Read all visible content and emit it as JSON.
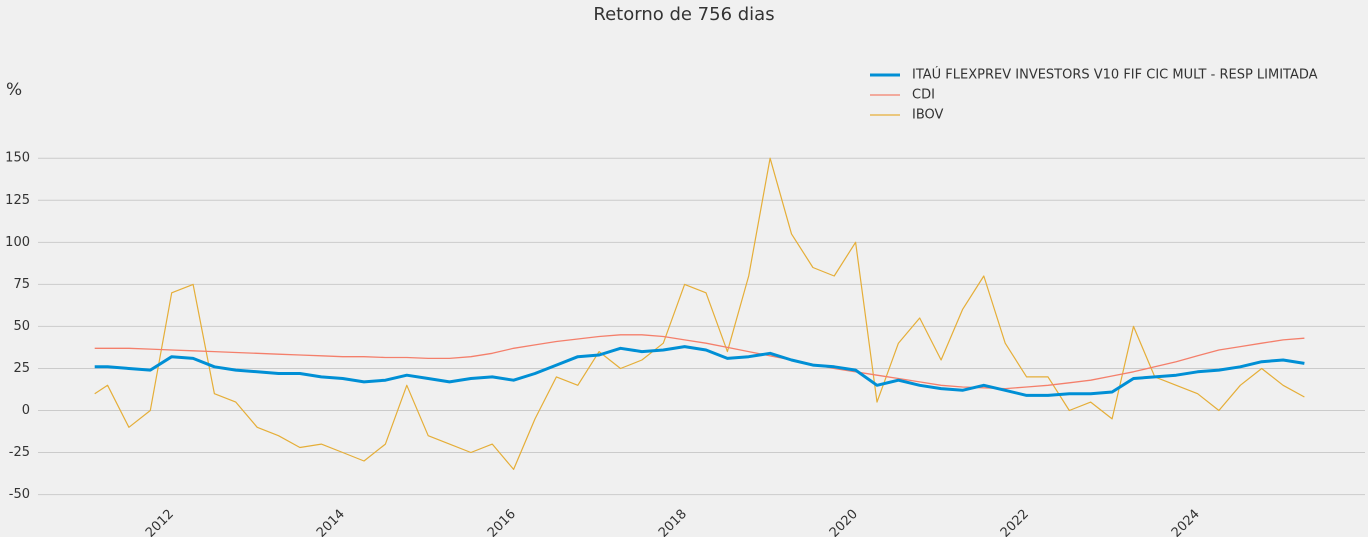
{
  "chart_data": {
    "type": "line",
    "title": "Retorno de 756 dias",
    "y_label": "%",
    "x": [
      2011.1,
      2011.25,
      2011.5,
      2011.75,
      2012,
      2012.25,
      2012.5,
      2012.75,
      2013,
      2013.25,
      2013.5,
      2013.75,
      2014,
      2014.25,
      2014.5,
      2014.75,
      2015,
      2015.25,
      2015.5,
      2015.75,
      2016,
      2016.25,
      2016.5,
      2016.75,
      2017,
      2017.25,
      2017.5,
      2017.75,
      2018,
      2018.25,
      2018.5,
      2018.75,
      2019,
      2019.25,
      2019.5,
      2019.75,
      2020,
      2020.25,
      2020.5,
      2020.75,
      2021,
      2021.25,
      2021.5,
      2021.75,
      2022,
      2022.25,
      2022.5,
      2022.75,
      2023,
      2023.25,
      2023.5,
      2023.75,
      2024,
      2024.25,
      2024.5,
      2024.75,
      2025,
      2025.25
    ],
    "series": [
      {
        "name": "ITAÚ FLEXPREV INVESTORS V10 FIF CIC MULT - RESP LIMITADA",
        "color": "#008fd5",
        "width": 3,
        "values": [
          26,
          26,
          25,
          24,
          32,
          31,
          26,
          24,
          23,
          22,
          22,
          20,
          19,
          17,
          18,
          21,
          19,
          17,
          19,
          20,
          18,
          22,
          27,
          32,
          33,
          37,
          35,
          36,
          38,
          36,
          31,
          32,
          34,
          30,
          27,
          26,
          24,
          15,
          18,
          15,
          13,
          12,
          15,
          12,
          9,
          9,
          10,
          10,
          11,
          19,
          20,
          21,
          23,
          24,
          26,
          29,
          30,
          28
        ]
      },
      {
        "name": "CDI",
        "color": "#f47f6b",
        "width": 1.3,
        "values": [
          37,
          37,
          37,
          36.5,
          36,
          35.5,
          35,
          34.5,
          34,
          33.5,
          33,
          32.5,
          32,
          32,
          31.5,
          31.5,
          31,
          31,
          32,
          34,
          37,
          39,
          41,
          42.5,
          44,
          45,
          45,
          44,
          42,
          40,
          37.5,
          35,
          32.5,
          30,
          27.5,
          25,
          23,
          21,
          19,
          17,
          15,
          14,
          13.5,
          13,
          14,
          15,
          16.5,
          18,
          20.5,
          23,
          26,
          29,
          32.5,
          36,
          38,
          40,
          42,
          43
        ]
      },
      {
        "name": "IBOV",
        "color": "#e5ae38",
        "width": 1.2,
        "values": [
          10,
          15,
          -10,
          0,
          70,
          75,
          10,
          5,
          -10,
          -15,
          -22,
          -20,
          -25,
          -30,
          -20,
          15,
          -15,
          -20,
          -25,
          -20,
          -35,
          -5,
          20,
          15,
          35,
          25,
          30,
          40,
          75,
          70,
          35,
          80,
          150,
          105,
          85,
          80,
          100,
          5,
          40,
          55,
          30,
          60,
          80,
          40,
          20,
          20,
          0,
          5,
          -5,
          50,
          20,
          15,
          10,
          0,
          15,
          25,
          15,
          8
        ]
      }
    ],
    "xlim": [
      2010.6,
      2025.9
    ],
    "xticks": [
      2012,
      2014,
      2016,
      2018,
      2020,
      2022,
      2024
    ],
    "ylim": [
      -55,
      165
    ],
    "yticks": [
      -50,
      -25,
      0,
      25,
      50,
      75,
      100,
      125,
      150
    ],
    "grid": true
  }
}
